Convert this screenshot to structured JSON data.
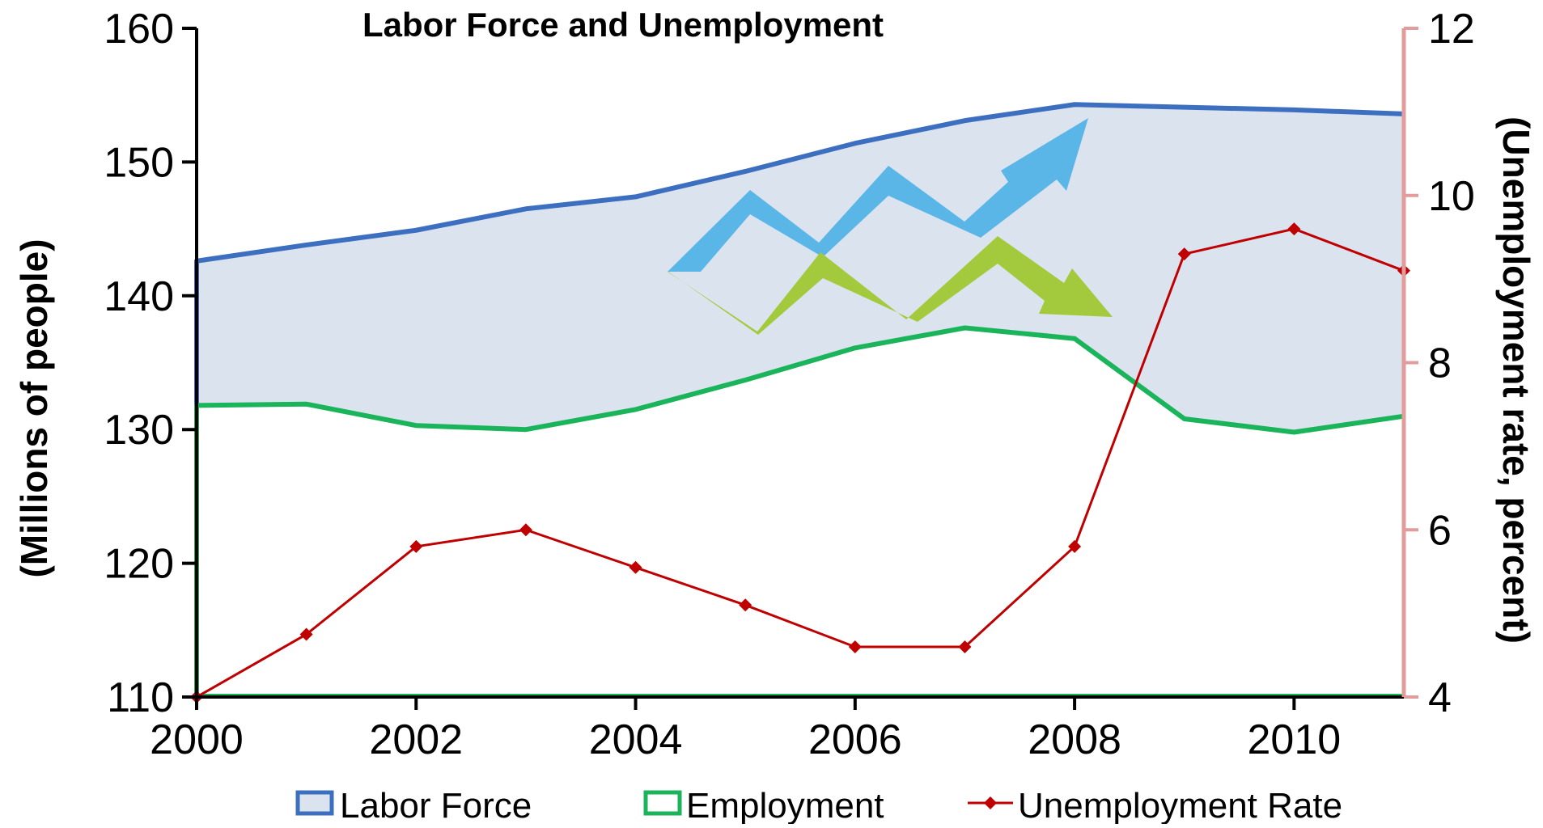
{
  "chart_data": {
    "type": "line",
    "title": "Labor Force and Unemployment",
    "ylabel": "(Millions of people)",
    "y2label": "(Unemployment rate, percent)",
    "xlim": [
      2000,
      2011
    ],
    "ylim": [
      110,
      160
    ],
    "y2lim": [
      4,
      12
    ],
    "x_ticks": [
      "2000",
      "2002",
      "2004",
      "2006",
      "2008",
      "2010"
    ],
    "y_ticks": [
      "110",
      "120",
      "130",
      "140",
      "150",
      "160"
    ],
    "y2_ticks": [
      "4",
      "6",
      "8",
      "10",
      "12"
    ],
    "x": [
      2000,
      2001,
      2002,
      2003,
      2004,
      2005,
      2006,
      2007,
      2008,
      2009,
      2010,
      2011
    ],
    "series": [
      {
        "name": "Labor Force",
        "axis": "left",
        "values": [
          142.6,
          143.8,
          144.9,
          146.5,
          147.4,
          149.3,
          151.4,
          153.1,
          154.3,
          154.1,
          153.9,
          153.6
        ],
        "color": "#3d6fc0",
        "fill": "#dbe3ef",
        "style": "area"
      },
      {
        "name": "Employment",
        "axis": "left",
        "values": [
          131.8,
          131.9,
          130.3,
          130.0,
          131.5,
          133.7,
          136.1,
          137.6,
          136.8,
          130.8,
          129.8,
          131.0
        ],
        "color": "#1ab45a",
        "style": "line"
      },
      {
        "name": "Unemployment Rate",
        "axis": "right",
        "values": [
          4.0,
          4.75,
          5.8,
          6.0,
          5.55,
          5.1,
          4.6,
          4.6,
          5.8,
          9.3,
          9.6,
          9.1
        ],
        "color": "#c00000",
        "style": "line-marker"
      }
    ],
    "grid": false,
    "legend_position": "bottom",
    "colors": {
      "right_axis": "#e39c9c",
      "blue_arrow": "#5bb6e8",
      "green_arrow": "#a3ca3c"
    }
  }
}
